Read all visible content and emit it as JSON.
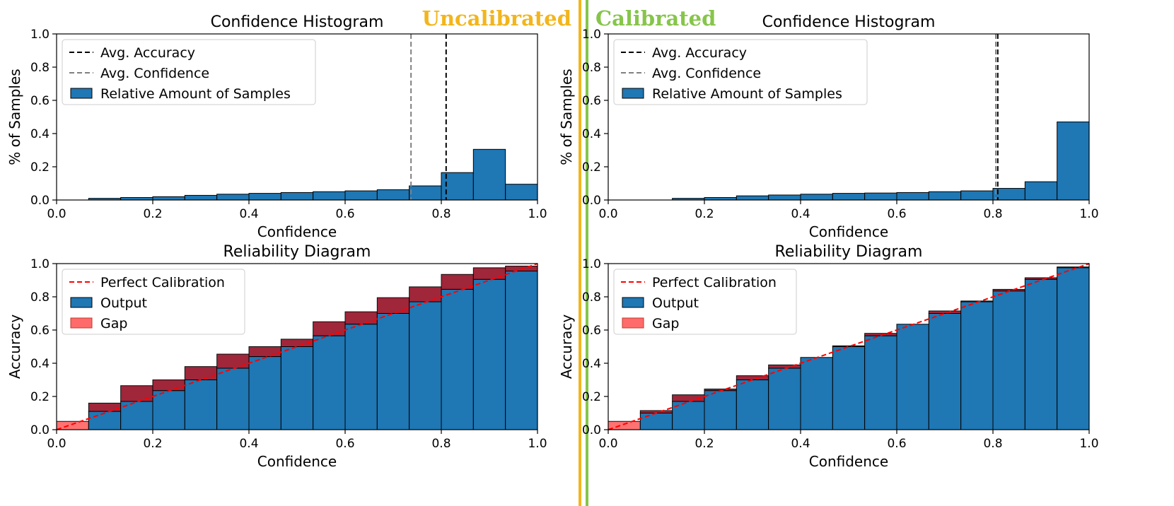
{
  "labels": {
    "uncalibrated": "Uncalibrated",
    "calibrated": "Calibrated"
  },
  "colors": {
    "bar": "#1f77b4",
    "gap": "#ff6b6b",
    "gap_dark": "#9b1b30",
    "uncalibrated": "#f2b51c",
    "calibrated": "#86c54a",
    "perfect": "#ff0000",
    "acc_line": "#000000",
    "conf_line": "#808080"
  },
  "chart_data": [
    {
      "id": "hist_uncal",
      "type": "bar",
      "title": "Confidence Histogram",
      "xlabel": "Confidence",
      "ylabel": "% of Samples",
      "xlim": [
        0,
        1
      ],
      "ylim": [
        0,
        1
      ],
      "xticks": [
        0.0,
        0.2,
        0.4,
        0.6,
        0.8,
        1.0
      ],
      "yticks": [
        0.0,
        0.2,
        0.4,
        0.6,
        0.8,
        1.0
      ],
      "bins": 15,
      "values": [
        0.0,
        0.01,
        0.015,
        0.02,
        0.028,
        0.035,
        0.04,
        0.045,
        0.05,
        0.055,
        0.062,
        0.085,
        0.165,
        0.305,
        0.095
      ],
      "avg_accuracy": 0.81,
      "avg_confidence": 0.737,
      "legend": [
        "Avg. Accuracy",
        "Avg. Confidence",
        "Relative Amount of Samples"
      ],
      "legend_position": "top-left"
    },
    {
      "id": "hist_cal",
      "type": "bar",
      "title": "Confidence Histogram",
      "xlabel": "Confidence",
      "ylabel": "% of Samples",
      "xlim": [
        0,
        1
      ],
      "ylim": [
        0,
        1
      ],
      "xticks": [
        0.0,
        0.2,
        0.4,
        0.6,
        0.8,
        1.0
      ],
      "yticks": [
        0.0,
        0.2,
        0.4,
        0.6,
        0.8,
        1.0
      ],
      "bins": 15,
      "values": [
        0.0,
        0.0,
        0.01,
        0.015,
        0.025,
        0.03,
        0.035,
        0.04,
        0.042,
        0.045,
        0.05,
        0.055,
        0.07,
        0.11,
        0.47
      ],
      "avg_accuracy": 0.81,
      "avg_confidence": 0.806,
      "legend": [
        "Avg. Accuracy",
        "Avg. Confidence",
        "Relative Amount of Samples"
      ],
      "legend_position": "top-left"
    },
    {
      "id": "rel_uncal",
      "type": "bar",
      "title": "Reliability Diagram",
      "xlabel": "Confidence",
      "ylabel": "Accuracy",
      "xlim": [
        0,
        1
      ],
      "ylim": [
        0,
        1
      ],
      "xticks": [
        0.0,
        0.2,
        0.4,
        0.6,
        0.8,
        1.0
      ],
      "yticks": [
        0.0,
        0.2,
        0.4,
        0.6,
        0.8,
        1.0
      ],
      "bins": 15,
      "accuracy": [
        0.0,
        0.11,
        0.17,
        0.235,
        0.3,
        0.37,
        0.44,
        0.5,
        0.565,
        0.635,
        0.7,
        0.77,
        0.845,
        0.905,
        0.955
      ],
      "confidence": [
        0.05,
        0.16,
        0.265,
        0.3,
        0.38,
        0.455,
        0.5,
        0.545,
        0.65,
        0.71,
        0.795,
        0.86,
        0.935,
        0.975,
        0.985
      ],
      "legend": [
        "Perfect Calibration",
        "Output",
        "Gap"
      ],
      "legend_position": "top-left"
    },
    {
      "id": "rel_cal",
      "type": "bar",
      "title": "Reliability Diagram",
      "xlabel": "Confidence",
      "ylabel": "Accuracy",
      "xlim": [
        0,
        1
      ],
      "ylim": [
        0,
        1
      ],
      "xticks": [
        0.0,
        0.2,
        0.4,
        0.6,
        0.8,
        1.0
      ],
      "yticks": [
        0.0,
        0.2,
        0.4,
        0.6,
        0.8,
        1.0
      ],
      "bins": 15,
      "accuracy": [
        0.0,
        0.1,
        0.17,
        0.235,
        0.3,
        0.37,
        0.435,
        0.5,
        0.565,
        0.635,
        0.7,
        0.77,
        0.835,
        0.905,
        0.975
      ],
      "confidence": [
        0.05,
        0.115,
        0.21,
        0.245,
        0.325,
        0.39,
        0.435,
        0.505,
        0.58,
        0.635,
        0.715,
        0.775,
        0.845,
        0.915,
        0.98
      ],
      "legend": [
        "Perfect Calibration",
        "Output",
        "Gap"
      ],
      "legend_position": "top-left"
    }
  ]
}
